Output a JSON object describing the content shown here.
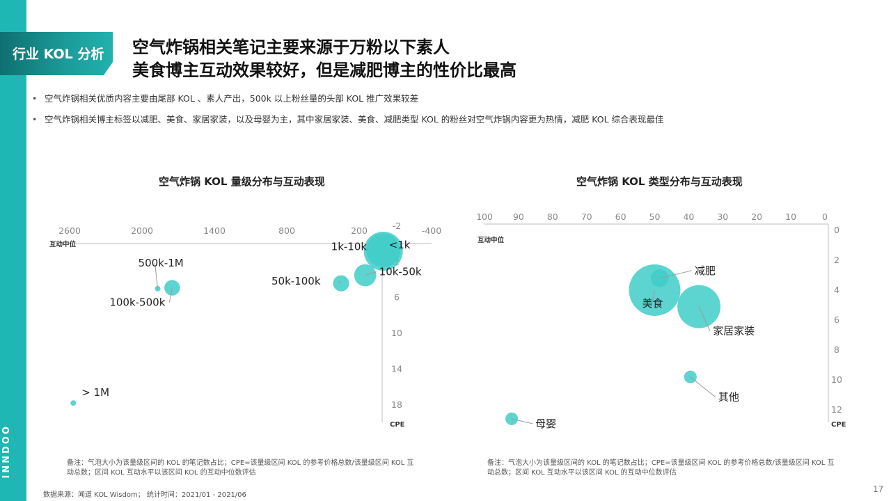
{
  "brand": {
    "name": "INNDOO"
  },
  "tag": {
    "label": "行业 KOL 分析"
  },
  "title": {
    "line1": "空气炸锅相关笔记主要来源于万粉以下素人",
    "line2": "美食博主互动效果较好，但是减肥博主的性价比最高"
  },
  "bullets": [
    "空气炸锅相关优质内容主要由尾部 KOL 、素人产出，500k 以上粉丝量的头部 KOL 推广效果较差",
    "空气炸锅相关博主标签以减肥、美食、家居家装，以及母婴为主，其中家居家装、美食、减肥类型 KOL 的粉丝对空气炸锅内容更为热情，减肥 KOL 综合表现最佳"
  ],
  "colors": {
    "accent": "#1fb7b4",
    "bubble": "#3fcdc8",
    "dark_teal": "#0f6f70"
  },
  "chart_data": [
    {
      "type": "scatter",
      "title": "空气炸锅 KOL 量级分布与互动表现",
      "xlabel": "互动中位",
      "ylabel": "CPE",
      "x_reversed": true,
      "y_reversed": true,
      "x_ticks": [
        2600,
        2000,
        1400,
        800,
        200,
        -400
      ],
      "y_ticks": [
        -2,
        2,
        6,
        10,
        14,
        18
      ],
      "xlim": [
        2600,
        -400
      ],
      "ylim": [
        -2,
        18
      ],
      "points": [
        {
          "label": "<1k",
          "x": 0,
          "y": 0.8,
          "size": 100
        },
        {
          "label": "1k-10k",
          "x": 0,
          "y": 0.7,
          "size": 75
        },
        {
          "label": "10k-50k",
          "x": 150,
          "y": 3.5,
          "size": 32
        },
        {
          "label": "50k-100k",
          "x": 350,
          "y": 4.4,
          "size": 17
        },
        {
          "label": "100k-500k",
          "x": 1750,
          "y": 4.9,
          "size": 16
        },
        {
          "label": "500k-1M",
          "x": 1870,
          "y": 5.0,
          "size": 2
        },
        {
          "label": "> 1M",
          "x": 2570,
          "y": 17.8,
          "size": 2
        }
      ],
      "note": "备注：气泡大小为该量级区间的 KOL 的笔记数占比；CPE=该量级区间 KOL 的参考价格总数/该量级区间 KOL 互动总数；区间 KOL 互动水平以该区间 KOL 的互动中位数评估"
    },
    {
      "type": "scatter",
      "title": "空气炸锅 KOL 类型分布与互动表现",
      "xlabel": "互动中位",
      "ylabel": "CPE",
      "x_reversed": true,
      "y_reversed": true,
      "x_ticks": [
        100,
        90,
        80,
        70,
        60,
        50,
        40,
        30,
        20,
        10,
        0
      ],
      "y_ticks": [
        0,
        2,
        4,
        6,
        8,
        10,
        12
      ],
      "xlim": [
        100,
        0
      ],
      "ylim": [
        0,
        12.6
      ],
      "points": [
        {
          "label": "美食",
          "x": 50,
          "y": 4.0,
          "size": 100
        },
        {
          "label": "家居家装",
          "x": 37,
          "y": 5.1,
          "size": 70
        },
        {
          "label": "减肥",
          "x": 48.5,
          "y": 3.2,
          "size": 12
        },
        {
          "label": "其他",
          "x": 39.5,
          "y": 9.8,
          "size": 6
        },
        {
          "label": "母婴",
          "x": 92,
          "y": 12.6,
          "size": 6
        }
      ],
      "note": "备注：气泡大小为该量级区间的 KOL 的笔记数占比；CPE=该量级区间 KOL 的参考价格总数/该量级区间 KOL 互动总数；区间 KOL 互动水平以该区间 KOL 的互动中位数评估"
    }
  ],
  "source": "数据来源：闻道 KOL Wisdom；  统计时间：2021/01 - 2021/06",
  "page_number": "17"
}
